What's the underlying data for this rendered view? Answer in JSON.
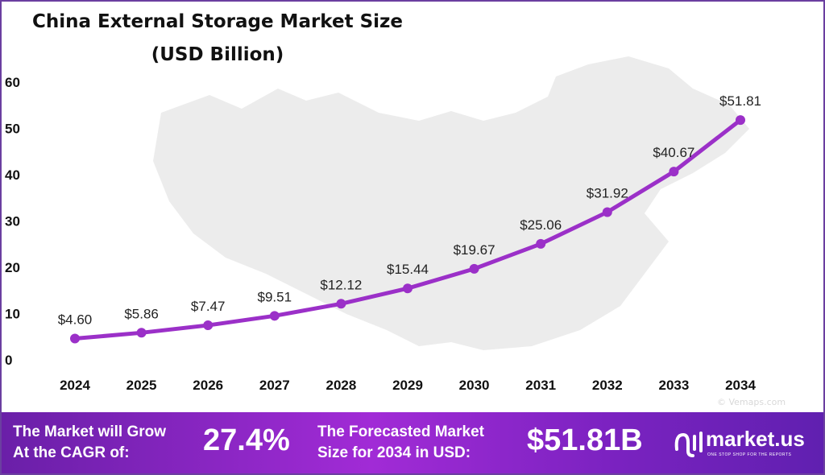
{
  "chart_data": {
    "type": "line",
    "title": "China External Storage Market Size",
    "subtitle": "(USD Billion)",
    "categories": [
      "2024",
      "2025",
      "2026",
      "2027",
      "2028",
      "2029",
      "2030",
      "2031",
      "2032",
      "2033",
      "2034"
    ],
    "values": [
      4.6,
      5.86,
      7.47,
      9.51,
      12.12,
      15.44,
      19.67,
      25.06,
      31.92,
      40.67,
      51.81
    ],
    "data_labels": [
      "$4.60",
      "$5.86",
      "$7.47",
      "$9.51",
      "$12.12",
      "$15.44",
      "$19.67",
      "$25.06",
      "$31.92",
      "$40.67",
      "$51.81"
    ],
    "yticks": [
      "0",
      "10",
      "20",
      "30",
      "40",
      "50",
      "60"
    ],
    "ylim": [
      0,
      60
    ],
    "grid": false,
    "line_color": "#9b30c8",
    "background": "map of China (light gray)"
  },
  "watermark": "© Vemaps.com",
  "footer": {
    "cagr_label_1": "The Market will Grow",
    "cagr_label_2": "At the CAGR of:",
    "cagr_value": "27.4%",
    "forecast_label_1": "The Forecasted Market",
    "forecast_label_2": "Size for 2034 in USD:",
    "forecast_value": "$51.81B",
    "brand": "market.us",
    "tagline": "ONE STOP SHOP FOR THE REPORTS"
  }
}
